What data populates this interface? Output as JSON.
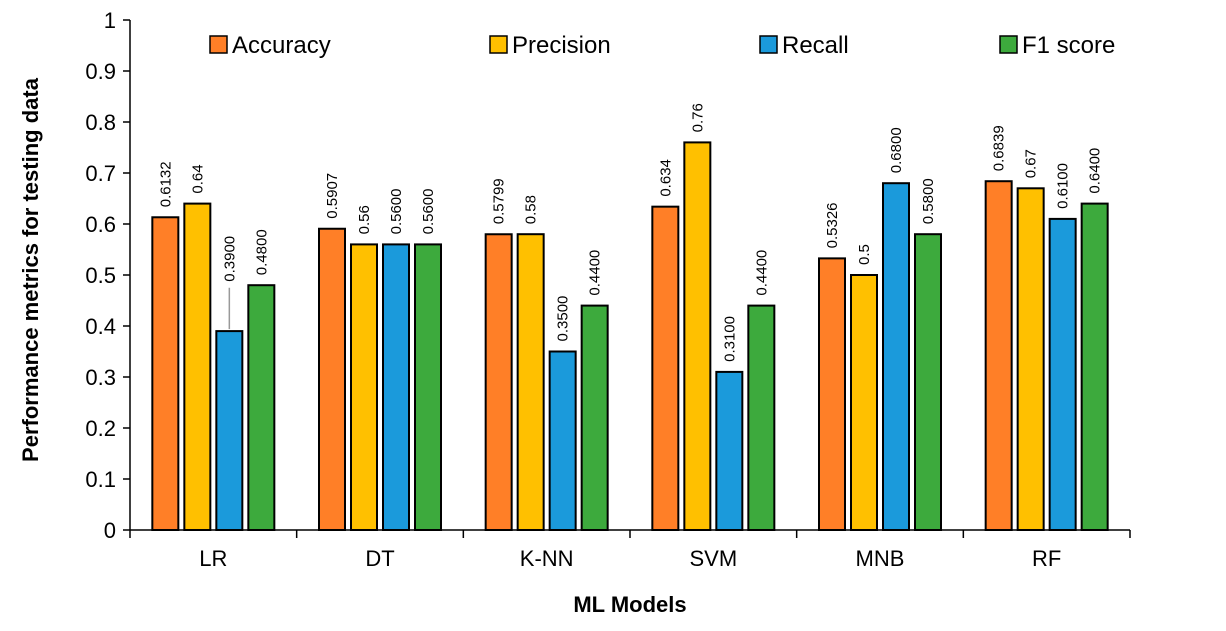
{
  "chart_data": {
    "type": "bar",
    "title": "",
    "xlabel": "ML Models",
    "ylabel": "Performance metrics for testing data",
    "ylim": [
      0,
      1
    ],
    "yticks": [
      0,
      0.1,
      0.2,
      0.3,
      0.4,
      0.5,
      0.6,
      0.7,
      0.8,
      0.9,
      1
    ],
    "ytick_labels": [
      "0",
      "0.1",
      "0.2",
      "0.3",
      "0.4",
      "0.5",
      "0.6",
      "0.7",
      "0.8",
      "0.9",
      "1"
    ],
    "grid": false,
    "legend_position": "top",
    "categories": [
      "LR",
      "DT",
      "K-NN",
      "SVM",
      "MNB",
      "RF"
    ],
    "series": [
      {
        "name": "Accuracy",
        "color": "#FF7F27",
        "values": [
          0.6132,
          0.5907,
          0.5799,
          0.634,
          0.5326,
          0.6839
        ],
        "labels": [
          "0.6132",
          "0.5907",
          "0.5799",
          "0.634",
          "0.5326",
          "0.6839"
        ]
      },
      {
        "name": "Precision",
        "color": "#FFC000",
        "values": [
          0.64,
          0.56,
          0.58,
          0.76,
          0.5,
          0.67
        ],
        "labels": [
          "0.64",
          "0.56",
          "0.58",
          "0.76",
          "0.5",
          "0.67"
        ]
      },
      {
        "name": "Recall",
        "color": "#1B9ADB",
        "values": [
          0.39,
          0.56,
          0.35,
          0.31,
          0.68,
          0.61
        ],
        "labels": [
          "0.3900",
          "0.5600",
          "0.3500",
          "0.3100",
          "0.6800",
          "0.6100"
        ]
      },
      {
        "name": "F1 score",
        "color": "#3DAA3D",
        "values": [
          0.48,
          0.56,
          0.44,
          0.44,
          0.58,
          0.64
        ],
        "labels": [
          "0.4800",
          "0.5600",
          "0.4400",
          "0.4400",
          "0.5800",
          "0.6400"
        ]
      }
    ]
  }
}
